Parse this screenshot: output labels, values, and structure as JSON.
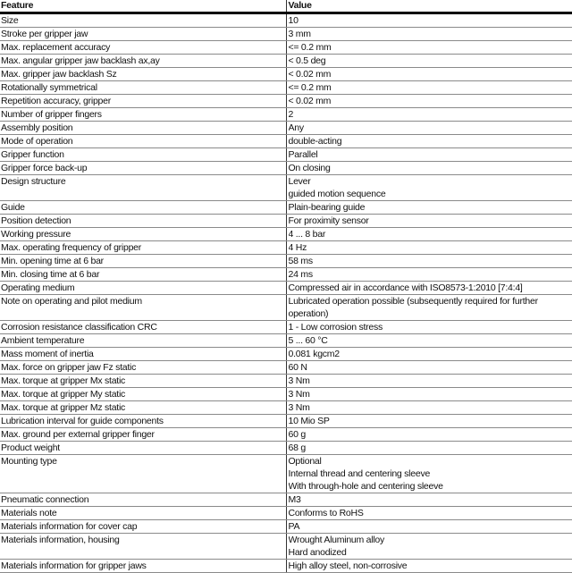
{
  "header": {
    "feature": "Feature",
    "value": "Value"
  },
  "rows": [
    {
      "feature": "Size",
      "value": [
        "10"
      ]
    },
    {
      "feature": "Stroke per gripper jaw",
      "value": [
        "3 mm"
      ]
    },
    {
      "feature": "Max. replacement accuracy",
      "value": [
        "<= 0.2 mm"
      ]
    },
    {
      "feature": "Max. angular gripper jaw backlash ax,ay",
      "value": [
        "< 0.5 deg"
      ]
    },
    {
      "feature": "Max. gripper jaw backlash Sz",
      "value": [
        "< 0.02 mm"
      ]
    },
    {
      "feature": "Rotationally symmetrical",
      "value": [
        "<= 0.2 mm"
      ]
    },
    {
      "feature": "Repetition accuracy, gripper",
      "value": [
        "< 0.02 mm"
      ]
    },
    {
      "feature": "Number of gripper fingers",
      "value": [
        "2"
      ]
    },
    {
      "feature": "Assembly position",
      "value": [
        "Any"
      ]
    },
    {
      "feature": "Mode of operation",
      "value": [
        "double-acting"
      ]
    },
    {
      "feature": "Gripper function",
      "value": [
        "Parallel"
      ]
    },
    {
      "feature": "Gripper force back-up",
      "value": [
        "On closing"
      ]
    },
    {
      "feature": "Design structure",
      "value": [
        "Lever",
        "guided motion sequence"
      ]
    },
    {
      "feature": "Guide",
      "value": [
        "Plain-bearing guide"
      ]
    },
    {
      "feature": "Position detection",
      "value": [
        "For proximity sensor"
      ]
    },
    {
      "feature": "Working pressure",
      "value": [
        "4 ... 8 bar"
      ]
    },
    {
      "feature": "Max. operating frequency of gripper",
      "value": [
        "4 Hz"
      ]
    },
    {
      "feature": "Min. opening time at 6 bar",
      "value": [
        "58 ms"
      ]
    },
    {
      "feature": "Min. closing time at 6 bar",
      "value": [
        "24 ms"
      ]
    },
    {
      "feature": "Operating medium",
      "value": [
        "Compressed air in accordance with ISO8573-1:2010 [7:4:4]"
      ]
    },
    {
      "feature": "Note on operating and pilot medium",
      "value": [
        "Lubricated operation possible (subsequently required for further",
        "operation)"
      ]
    },
    {
      "feature": "Corrosion resistance classification CRC",
      "value": [
        "1 - Low corrosion stress"
      ]
    },
    {
      "feature": "Ambient temperature",
      "value": [
        "5 ... 60 °C"
      ]
    },
    {
      "feature": "Mass moment of inertia",
      "value": [
        "0.081 kgcm2"
      ]
    },
    {
      "feature": "Max. force on gripper jaw Fz static",
      "value": [
        "60 N"
      ]
    },
    {
      "feature": "Max. torque at gripper Mx static",
      "value": [
        "3 Nm"
      ]
    },
    {
      "feature": "Max. torque at gripper My static",
      "value": [
        "3 Nm"
      ]
    },
    {
      "feature": "Max. torque at gripper Mz static",
      "value": [
        "3 Nm"
      ]
    },
    {
      "feature": "Lubrication interval for guide components",
      "value": [
        "10 Mio SP"
      ]
    },
    {
      "feature": "Max. ground per external gripper finger",
      "value": [
        "60 g"
      ]
    },
    {
      "feature": "Product weight",
      "value": [
        "68 g"
      ]
    },
    {
      "feature": "Mounting type",
      "value": [
        "Optional",
        "Internal thread and centering sleeve",
        "With through-hole and centering sleeve"
      ]
    },
    {
      "feature": "Pneumatic connection",
      "value": [
        "M3"
      ]
    },
    {
      "feature": "Materials note",
      "value": [
        "Conforms to RoHS"
      ]
    },
    {
      "feature": "Materials information for cover cap",
      "value": [
        "PA"
      ]
    },
    {
      "feature": "Materials information, housing",
      "value": [
        "Wrought Aluminum alloy",
        "Hard anodized"
      ]
    },
    {
      "feature": "Materials information for gripper jaws",
      "value": [
        "High alloy steel, non-corrosive"
      ]
    }
  ]
}
